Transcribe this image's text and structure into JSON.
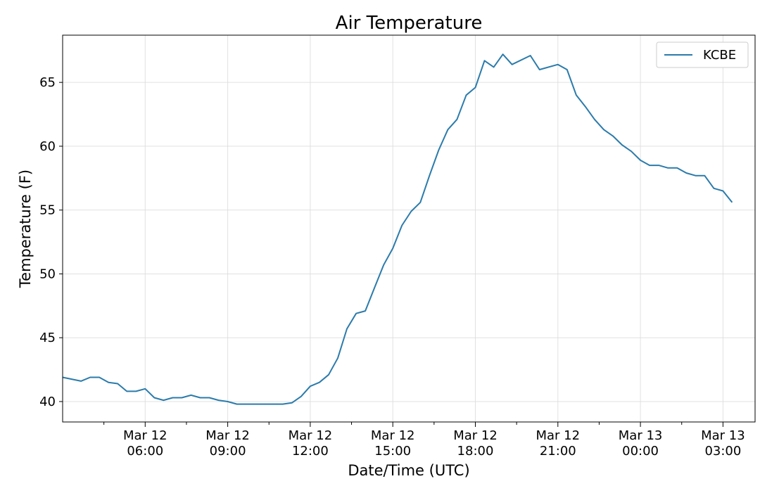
{
  "chart_data": {
    "type": "line",
    "title": "Air Temperature",
    "xlabel": "Date/Time (UTC)",
    "ylabel": "Temperature (F)",
    "x_range": [
      "2019-03-12T03:00",
      "2019-03-13T04:10"
    ],
    "ylim": [
      38.4,
      68.7
    ],
    "y_ticks": [
      40,
      45,
      50,
      55,
      60,
      65
    ],
    "x_ticks": [
      {
        "time": "2019-03-12T06:00",
        "line1": "Mar 12",
        "line2": "06:00"
      },
      {
        "time": "2019-03-12T09:00",
        "line1": "Mar 12",
        "line2": "09:00"
      },
      {
        "time": "2019-03-12T12:00",
        "line1": "Mar 12",
        "line2": "12:00"
      },
      {
        "time": "2019-03-12T15:00",
        "line1": "Mar 12",
        "line2": "15:00"
      },
      {
        "time": "2019-03-12T18:00",
        "line1": "Mar 12",
        "line2": "18:00"
      },
      {
        "time": "2019-03-12T21:00",
        "line1": "Mar 12",
        "line2": "21:00"
      },
      {
        "time": "2019-03-13T00:00",
        "line1": "Mar 13",
        "line2": "00:00"
      },
      {
        "time": "2019-03-13T03:00",
        "line1": "Mar 13",
        "line2": "03:00"
      }
    ],
    "minor_x_ticks": [
      "2019-03-12T04:30",
      "2019-03-12T07:30",
      "2019-03-12T10:30",
      "2019-03-12T13:30",
      "2019-03-12T16:30",
      "2019-03-12T19:30",
      "2019-03-12T22:30",
      "2019-03-13T01:30"
    ],
    "grid": true,
    "legend_position": "top-right",
    "series": [
      {
        "name": "KCBE",
        "color": "#2b7bab",
        "points": [
          [
            "2019-03-12T03:00",
            41.9
          ],
          [
            "2019-03-12T03:40",
            41.6
          ],
          [
            "2019-03-12T04:00",
            41.9
          ],
          [
            "2019-03-12T04:20",
            41.9
          ],
          [
            "2019-03-12T04:40",
            41.5
          ],
          [
            "2019-03-12T05:00",
            41.4
          ],
          [
            "2019-03-12T05:20",
            40.8
          ],
          [
            "2019-03-12T05:40",
            40.8
          ],
          [
            "2019-03-12T06:00",
            41.0
          ],
          [
            "2019-03-12T06:20",
            40.3
          ],
          [
            "2019-03-12T06:40",
            40.1
          ],
          [
            "2019-03-12T07:00",
            40.3
          ],
          [
            "2019-03-12T07:20",
            40.3
          ],
          [
            "2019-03-12T07:40",
            40.5
          ],
          [
            "2019-03-12T08:00",
            40.3
          ],
          [
            "2019-03-12T08:20",
            40.3
          ],
          [
            "2019-03-12T08:40",
            40.1
          ],
          [
            "2019-03-12T09:00",
            40.0
          ],
          [
            "2019-03-12T09:20",
            39.8
          ],
          [
            "2019-03-12T09:40",
            39.8
          ],
          [
            "2019-03-12T10:00",
            39.8
          ],
          [
            "2019-03-12T10:20",
            39.8
          ],
          [
            "2019-03-12T10:40",
            39.8
          ],
          [
            "2019-03-12T11:00",
            39.8
          ],
          [
            "2019-03-12T11:20",
            39.9
          ],
          [
            "2019-03-12T11:40",
            40.4
          ],
          [
            "2019-03-12T12:00",
            41.2
          ],
          [
            "2019-03-12T12:20",
            41.5
          ],
          [
            "2019-03-12T12:40",
            42.1
          ],
          [
            "2019-03-12T13:00",
            43.4
          ],
          [
            "2019-03-12T13:20",
            45.7
          ],
          [
            "2019-03-12T13:40",
            46.9
          ],
          [
            "2019-03-12T14:00",
            47.1
          ],
          [
            "2019-03-12T14:20",
            48.9
          ],
          [
            "2019-03-12T14:40",
            50.7
          ],
          [
            "2019-03-12T15:00",
            52.0
          ],
          [
            "2019-03-12T15:20",
            53.8
          ],
          [
            "2019-03-12T15:40",
            54.9
          ],
          [
            "2019-03-12T16:00",
            55.6
          ],
          [
            "2019-03-12T16:20",
            57.7
          ],
          [
            "2019-03-12T16:40",
            59.7
          ],
          [
            "2019-03-12T17:00",
            61.3
          ],
          [
            "2019-03-12T17:20",
            62.1
          ],
          [
            "2019-03-12T17:40",
            64.0
          ],
          [
            "2019-03-12T18:00",
            64.6
          ],
          [
            "2019-03-12T18:20",
            66.7
          ],
          [
            "2019-03-12T18:40",
            66.2
          ],
          [
            "2019-03-12T19:00",
            67.2
          ],
          [
            "2019-03-12T19:20",
            66.4
          ],
          [
            "2019-03-12T20:00",
            67.1
          ],
          [
            "2019-03-12T20:20",
            66.0
          ],
          [
            "2019-03-12T21:00",
            66.4
          ],
          [
            "2019-03-12T21:20",
            66.0
          ],
          [
            "2019-03-12T21:40",
            64.0
          ],
          [
            "2019-03-12T22:00",
            63.1
          ],
          [
            "2019-03-12T22:20",
            62.1
          ],
          [
            "2019-03-12T22:40",
            61.3
          ],
          [
            "2019-03-12T23:00",
            60.8
          ],
          [
            "2019-03-12T23:20",
            60.1
          ],
          [
            "2019-03-12T23:40",
            59.6
          ],
          [
            "2019-03-13T00:00",
            58.9
          ],
          [
            "2019-03-13T00:20",
            58.5
          ],
          [
            "2019-03-13T00:40",
            58.5
          ],
          [
            "2019-03-13T01:00",
            58.3
          ],
          [
            "2019-03-13T01:20",
            58.3
          ],
          [
            "2019-03-13T01:40",
            57.9
          ],
          [
            "2019-03-13T02:00",
            57.7
          ],
          [
            "2019-03-13T02:20",
            57.7
          ],
          [
            "2019-03-13T02:40",
            56.7
          ],
          [
            "2019-03-13T03:00",
            56.5
          ],
          [
            "2019-03-13T03:20",
            55.6
          ]
        ]
      }
    ]
  }
}
